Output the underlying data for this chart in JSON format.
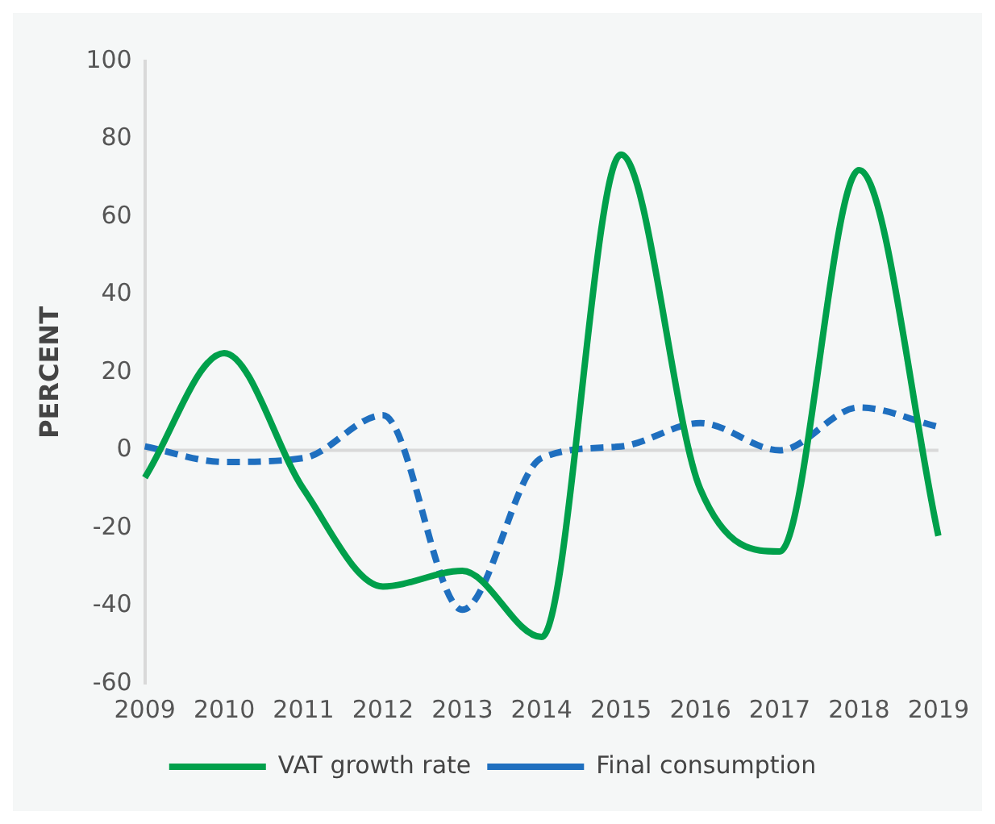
{
  "chart_data": {
    "type": "line",
    "ylabel": "PERCENT",
    "categories": [
      "2009",
      "2010",
      "2011",
      "2012",
      "2013",
      "2014",
      "2015",
      "2016",
      "2017",
      "2018",
      "2019"
    ],
    "series": [
      {
        "name": "VAT growth rate",
        "color": "#00a04b",
        "line_style": "solid",
        "values": [
          -7,
          25,
          -10,
          -35,
          -31,
          -48,
          76,
          -10,
          -26,
          72,
          -22
        ]
      },
      {
        "name": "Final consumption",
        "color": "#1f6fbf",
        "line_style": "dashed",
        "values": [
          1,
          -3,
          -2,
          9,
          -41,
          -2,
          1,
          7,
          0,
          11,
          6
        ]
      }
    ],
    "ylim": [
      -60,
      100
    ],
    "yticks": [
      -60,
      -40,
      -20,
      0,
      20,
      40,
      60,
      80,
      100
    ],
    "ref_lines": [
      {
        "axis": "y",
        "value": 0,
        "color": "#d9d9d9"
      }
    ],
    "grid": false,
    "legend": "bottom",
    "marker": "none"
  }
}
